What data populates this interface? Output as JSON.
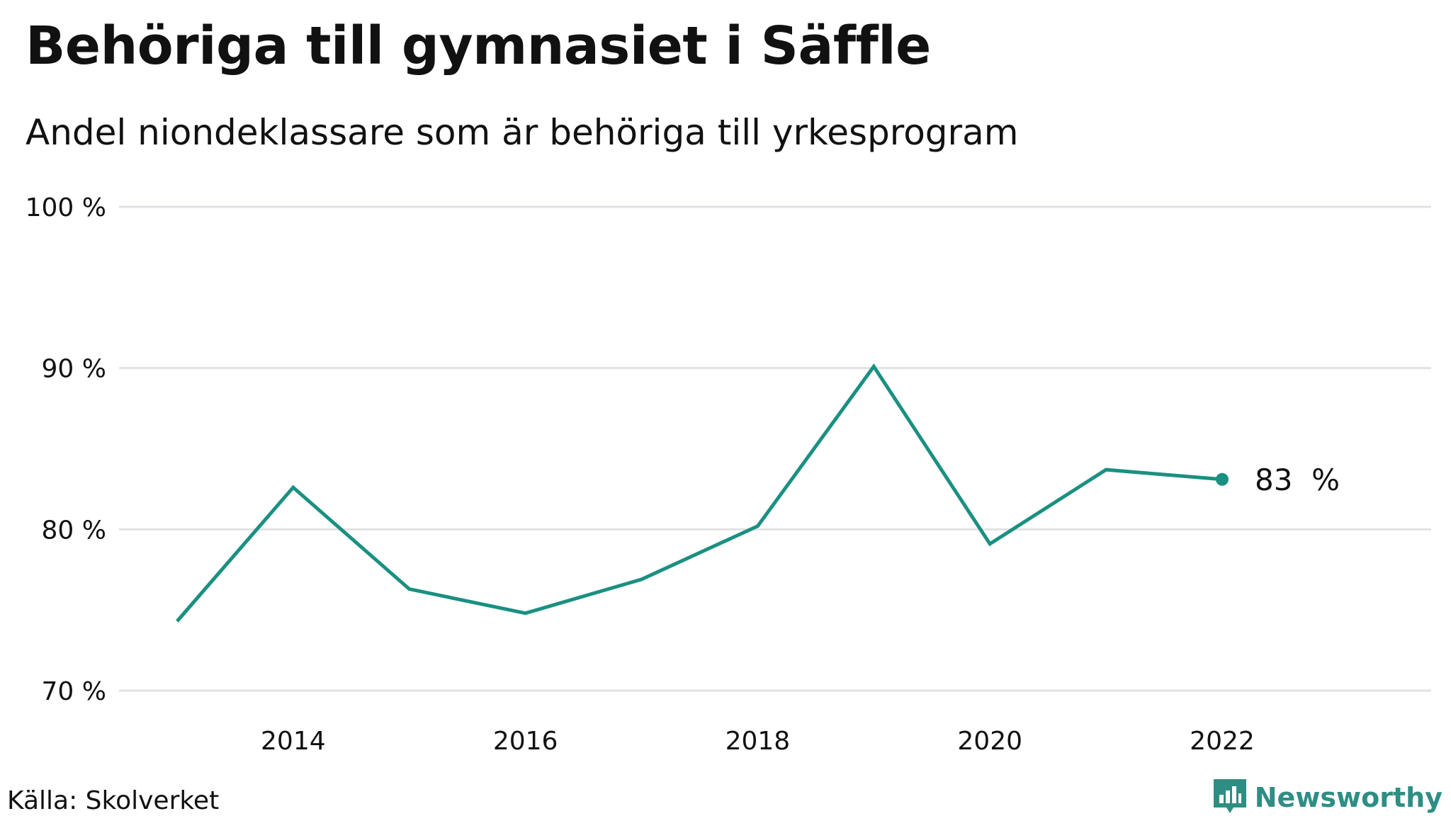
{
  "title": "Behöriga till gymnasiet i Säffle",
  "subtitle": "Andel niondeklassare som är behöriga till yrkesprogram",
  "source": "Källa: Skolverket",
  "brand": {
    "name": "Newsworthy",
    "icon": "newsworthy-logo-icon"
  },
  "colors": {
    "line": "#1a9081",
    "grid": "#e2e2e6",
    "text": "#111111",
    "brand": "#2e8e84"
  },
  "chart_data": {
    "type": "line",
    "title": "Behöriga till gymnasiet i Säffle",
    "subtitle": "Andel niondeklassare som är behöriga till yrkesprogram",
    "xlabel": "",
    "ylabel": "",
    "x": [
      2013,
      2014,
      2015,
      2016,
      2017,
      2018,
      2019,
      2020,
      2021,
      2022
    ],
    "series": [
      {
        "name": "Säffle",
        "values": [
          74.3,
          82.6,
          76.3,
          74.8,
          76.9,
          80.2,
          90.1,
          79.1,
          83.7,
          83.1
        ]
      }
    ],
    "xlim": [
      2012.5,
      2023.8
    ],
    "ylim": [
      70,
      100
    ],
    "y_ticks": [
      70,
      80,
      90,
      100
    ],
    "y_tick_labels": [
      "70 %",
      "80 %",
      "90 %",
      "100 %"
    ],
    "x_ticks": [
      2014,
      2016,
      2018,
      2020,
      2022
    ],
    "x_tick_labels": [
      "2014",
      "2016",
      "2018",
      "2020",
      "2022"
    ],
    "grid": true,
    "end_label": "83  %"
  }
}
